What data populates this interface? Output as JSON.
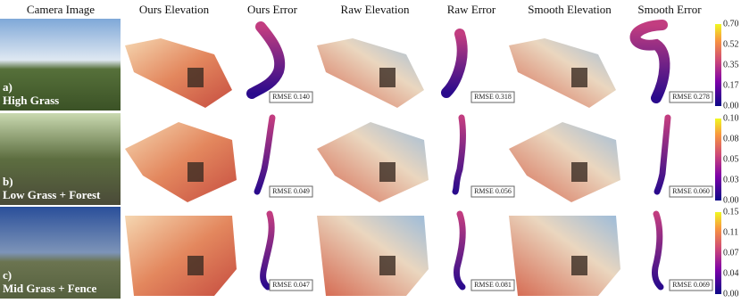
{
  "header": {
    "columns": [
      "Camera Image",
      "Ours Elevation",
      "Ours Error",
      "Raw Elevation",
      "Raw Error",
      "Smooth Elevation",
      "Smooth Error"
    ]
  },
  "rows": [
    {
      "letter": "a)",
      "name": "High Grass",
      "rmse": [
        "RMSE 0.140",
        "RMSE 0.318",
        "RMSE 0.278"
      ],
      "colorbar_ticks": [
        "0.70",
        "0.52",
        "0.35",
        "0.17",
        "0.00"
      ]
    },
    {
      "letter": "b)",
      "name": "Low Grass + Forest",
      "rmse": [
        "RMSE 0.049",
        "RMSE 0.056",
        "RMSE 0.060"
      ],
      "colorbar_ticks": [
        "0.10",
        "0.08",
        "0.05",
        "0.03",
        "0.00"
      ]
    },
    {
      "letter": "c)",
      "name": "Mid Grass + Fence",
      "rmse": [
        "RMSE 0.047",
        "RMSE 0.081",
        "RMSE 0.069"
      ],
      "colorbar_ticks": [
        "0.15",
        "0.11",
        "0.07",
        "0.04",
        "0.00"
      ]
    }
  ]
}
